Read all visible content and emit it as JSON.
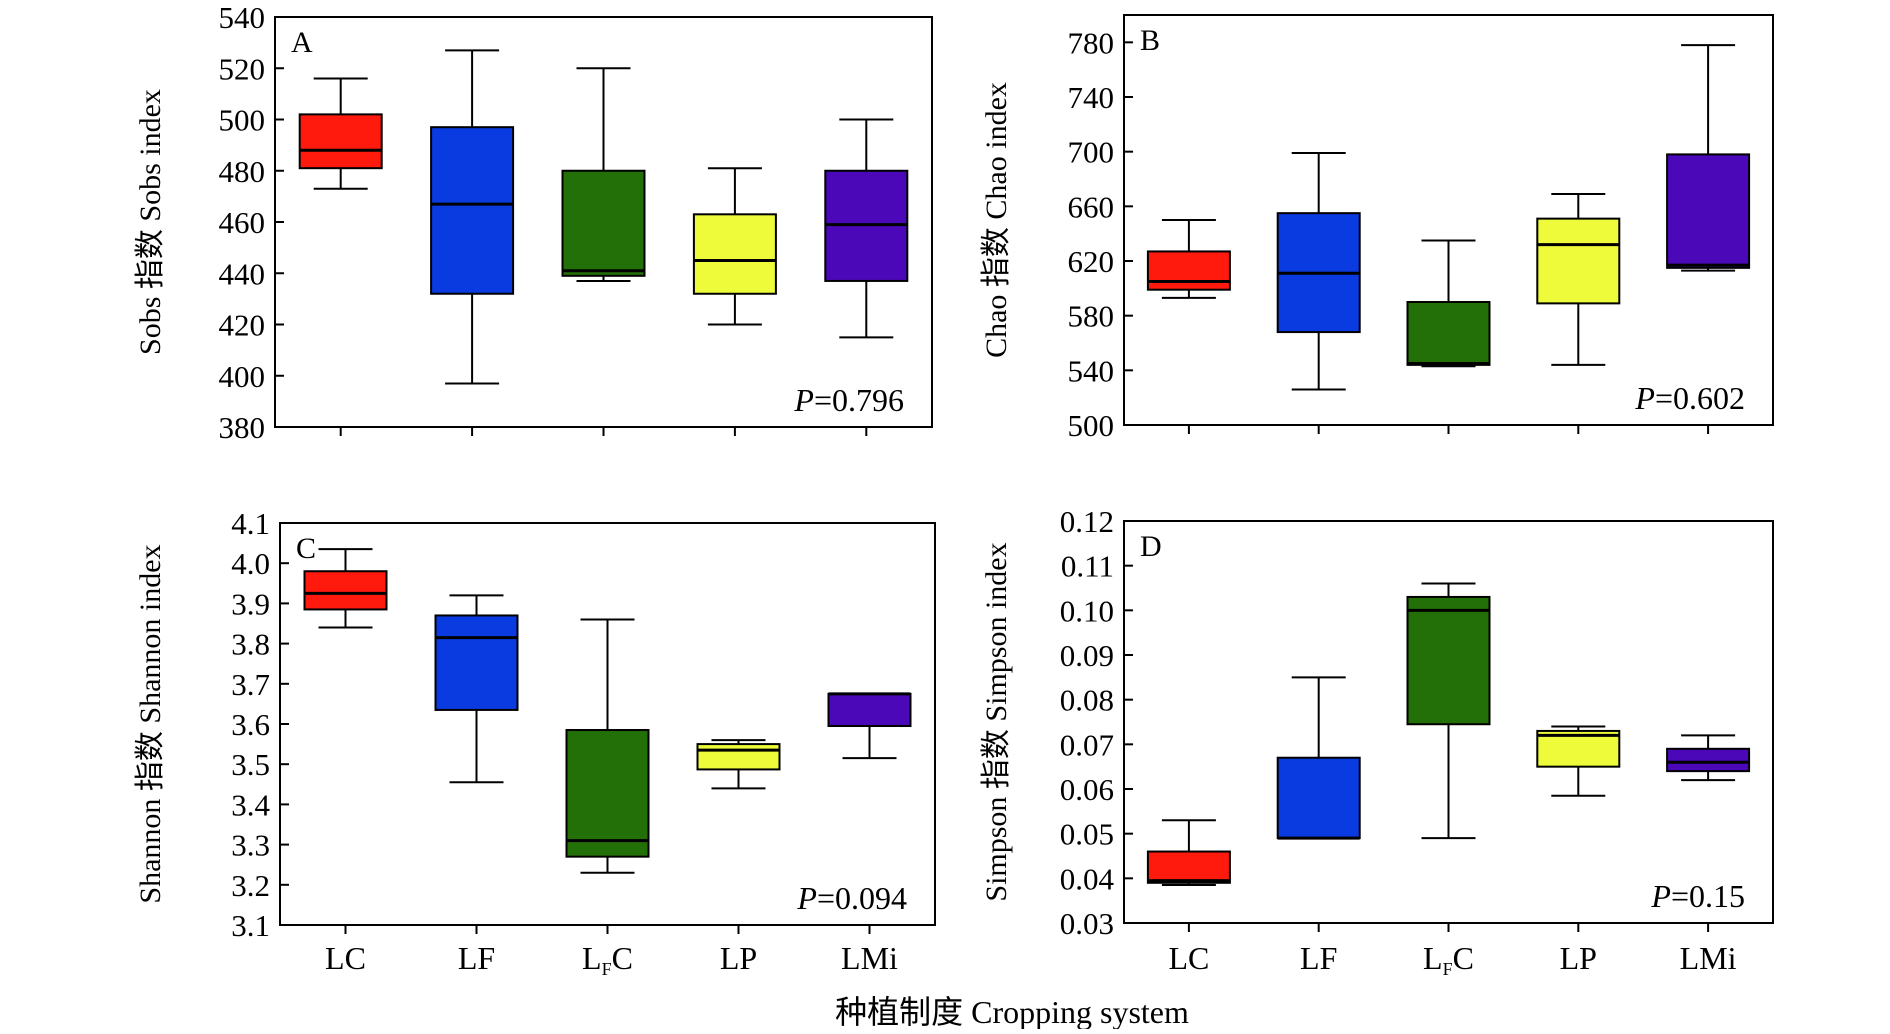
{
  "chart_data": [
    {
      "panel": "A",
      "type": "box",
      "ylabel": "Sobs 指数 Sobs index",
      "ylim": [
        380,
        540
      ],
      "yticks": [
        380,
        400,
        420,
        440,
        460,
        480,
        500,
        520,
        540
      ],
      "categories": [
        "LC",
        "LF",
        "LFC",
        "LP",
        "LMi"
      ],
      "boxes": [
        {
          "min": 473,
          "q1": 481,
          "median": 488,
          "q3": 502,
          "max": 516,
          "color": "#ff1a0d"
        },
        {
          "min": 397,
          "q1": 432,
          "median": 467,
          "q3": 497,
          "max": 527,
          "color": "#0a3be0"
        },
        {
          "min": 437,
          "q1": 439,
          "median": 441,
          "q3": 480,
          "max": 520,
          "color": "#247008"
        },
        {
          "min": 420,
          "q1": 432,
          "median": 445,
          "q3": 463,
          "max": 481,
          "color": "#eefb3a"
        },
        {
          "min": 415,
          "q1": 437,
          "median": 459,
          "q3": 480,
          "max": 500,
          "color": "#4a08b8"
        }
      ],
      "p_prefix": "P",
      "p_text": "=0.796"
    },
    {
      "panel": "B",
      "type": "box",
      "ylabel": "Chao 指数 Chao index",
      "ylim": [
        500,
        800
      ],
      "yticks": [
        500,
        540,
        580,
        620,
        660,
        700,
        740,
        780
      ],
      "categories": [
        "LC",
        "LF",
        "LFC",
        "LP",
        "LMi"
      ],
      "boxes": [
        {
          "min": 593,
          "q1": 599,
          "median": 605,
          "q3": 627,
          "max": 650,
          "color": "#ff1a0d"
        },
        {
          "min": 526,
          "q1": 568,
          "median": 611,
          "q3": 655,
          "max": 699,
          "color": "#0a3be0"
        },
        {
          "min": 543,
          "q1": 544,
          "median": 545,
          "q3": 590,
          "max": 635,
          "color": "#247008"
        },
        {
          "min": 544,
          "q1": 589,
          "median": 632,
          "q3": 651,
          "max": 669,
          "color": "#eefb3a"
        },
        {
          "min": 613,
          "q1": 615,
          "median": 617,
          "q3": 698,
          "max": 778,
          "color": "#4a08b8"
        }
      ],
      "p_prefix": "P",
      "p_text": "=0.602"
    },
    {
      "panel": "C",
      "type": "box",
      "ylabel": "Shannon 指数 Shannon index",
      "ylim": [
        3.1,
        4.1
      ],
      "yticks": [
        "3.1",
        "3.2",
        "3.3",
        "3.4",
        "3.5",
        "3.6",
        "3.7",
        "3.8",
        "3.9",
        "4.0",
        "4.1"
      ],
      "categories": [
        "LC",
        "LF",
        "LFC",
        "LP",
        "LMi"
      ],
      "boxes": [
        {
          "min": 3.84,
          "q1": 3.885,
          "median": 3.925,
          "q3": 3.98,
          "max": 4.035,
          "color": "#ff1a0d"
        },
        {
          "min": 3.455,
          "q1": 3.635,
          "median": 3.815,
          "q3": 3.87,
          "max": 3.92,
          "color": "#0a3be0"
        },
        {
          "min": 3.23,
          "q1": 3.27,
          "median": 3.31,
          "q3": 3.585,
          "max": 3.86,
          "color": "#247008"
        },
        {
          "min": 3.44,
          "q1": 3.487,
          "median": 3.535,
          "q3": 3.55,
          "max": 3.56,
          "color": "#eefb3a"
        },
        {
          "min": 3.515,
          "q1": 3.595,
          "median": 3.675,
          "q3": 3.675,
          "max": 3.675,
          "color": "#4a08b8"
        }
      ],
      "p_prefix": "P",
      "p_text": "=0.094"
    },
    {
      "panel": "D",
      "type": "box",
      "ylabel": "Simpson 指数 Simpson index",
      "ylim": [
        0.03,
        0.12
      ],
      "yticks": [
        "0.03",
        "0.04",
        "0.05",
        "0.06",
        "0.07",
        "0.08",
        "0.09",
        "0.10",
        "0.11",
        "0.12"
      ],
      "categories": [
        "LC",
        "LF",
        "LFC",
        "LP",
        "LMi"
      ],
      "boxes": [
        {
          "min": 0.0385,
          "q1": 0.039,
          "median": 0.0395,
          "q3": 0.046,
          "max": 0.053,
          "color": "#ff1a0d"
        },
        {
          "min": 0.049,
          "q1": 0.049,
          "median": 0.049,
          "q3": 0.067,
          "max": 0.085,
          "color": "#0a3be0"
        },
        {
          "min": 0.049,
          "q1": 0.0745,
          "median": 0.1,
          "q3": 0.103,
          "max": 0.106,
          "color": "#247008"
        },
        {
          "min": 0.0585,
          "q1": 0.065,
          "median": 0.072,
          "q3": 0.073,
          "max": 0.074,
          "color": "#eefb3a"
        },
        {
          "min": 0.062,
          "q1": 0.064,
          "median": 0.066,
          "q3": 0.069,
          "max": 0.072,
          "color": "#4a08b8"
        }
      ],
      "p_prefix": "P",
      "p_text": "=0.15"
    }
  ],
  "x_axis_title": "种植制度 Cropping system",
  "category_labels": [
    {
      "main": "LC",
      "sub": ""
    },
    {
      "main": "LF",
      "sub": ""
    },
    {
      "main": "L",
      "sub": "F",
      "tail": "C"
    },
    {
      "main": "LP",
      "sub": ""
    },
    {
      "main": "LMi",
      "sub": ""
    }
  ]
}
